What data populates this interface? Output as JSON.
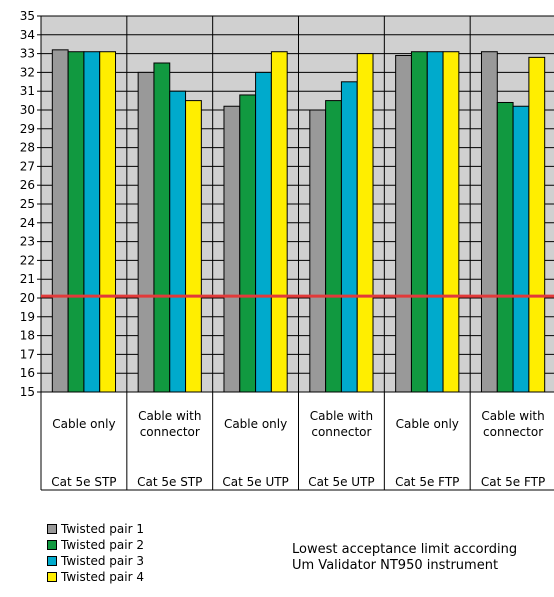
{
  "colors": {
    "plot_bg": "#d0d0d0",
    "grid": "#000000",
    "limit_line": "#e23a3a"
  },
  "chart_data": {
    "type": "bar",
    "categories": [
      {
        "top": "Cable only",
        "bottom": "Cat 5e STP"
      },
      {
        "top": "Cable with connector",
        "bottom": "Cat 5e STP"
      },
      {
        "top": "Cable only",
        "bottom": "Cat 5e UTP"
      },
      {
        "top": "Cable with connector",
        "bottom": "Cat 5e UTP"
      },
      {
        "top": "Cable only",
        "bottom": "Cat 5e FTP"
      },
      {
        "top": "Cable with connector",
        "bottom": "Cat 5e FTP"
      }
    ],
    "series": [
      {
        "name": "Twisted pair 1",
        "color": "#999999",
        "values": [
          33.2,
          32.0,
          30.2,
          30.0,
          32.9,
          33.1
        ]
      },
      {
        "name": "Twisted pair 2",
        "color": "#119940",
        "values": [
          33.1,
          32.5,
          30.8,
          30.5,
          33.1,
          30.4
        ]
      },
      {
        "name": "Twisted pair 3",
        "color": "#00aacc",
        "values": [
          33.1,
          31.0,
          32.0,
          31.5,
          33.1,
          30.2
        ]
      },
      {
        "name": "Twisted pair 4",
        "color": "#ffee00",
        "values": [
          33.1,
          30.5,
          33.1,
          33.0,
          33.1,
          32.8
        ]
      }
    ],
    "ylim": [
      15,
      35
    ],
    "yticks": [
      15,
      16,
      17,
      18,
      19,
      20,
      21,
      22,
      23,
      24,
      25,
      26,
      27,
      28,
      29,
      30,
      31,
      32,
      33,
      34,
      35
    ],
    "grid": true,
    "legend_position": "bottom-left",
    "reference_line": {
      "value": 20.1
    },
    "annotation": [
      "Lowest acceptance limit according",
      "Um  Validator NT950 instrument"
    ]
  }
}
